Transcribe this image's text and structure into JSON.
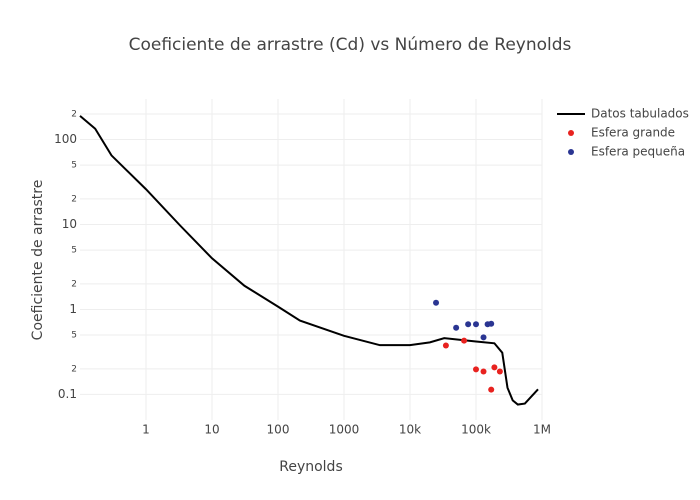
{
  "chart_data": {
    "type": "line",
    "title": "Coeficiente de arrastre (Cd) vs Número de Reynolds",
    "xlabel": "Reynolds",
    "ylabel": "Coeficiente de arrastre",
    "xscale": "log",
    "yscale": "log",
    "grid": true,
    "legend": "top-right",
    "xlim": [
      0.1,
      1000000
    ],
    "ylim": [
      0.05,
      300
    ],
    "xticks": [
      1,
      10,
      100,
      1000,
      {
        "value": 10000,
        "label": "10k"
      },
      {
        "value": 100000,
        "label": "100k"
      },
      {
        "value": 1000000,
        "label": "1M"
      }
    ],
    "yticks": [
      0.1,
      {
        "value": 0.2,
        "label": "2"
      },
      {
        "value": 0.5,
        "label": "5"
      },
      1,
      {
        "value": 2,
        "label": "2"
      },
      {
        "value": 5,
        "label": "5"
      },
      10,
      {
        "value": 20,
        "label": "2"
      },
      {
        "value": 50,
        "label": "5"
      },
      100,
      {
        "value": 200,
        "label": "2"
      }
    ],
    "series": [
      {
        "name": "Datos tabulados",
        "color": "#000000",
        "mode": "lines",
        "x": [
          0.1,
          0.17,
          0.3,
          1,
          3.3,
          10,
          31,
          100,
          215,
          1000,
          3500,
          10000,
          20000,
          33000,
          100000,
          190000,
          250000,
          300000,
          360000,
          430000,
          550000,
          870000
        ],
        "values": [
          190,
          134,
          65,
          26,
          9.7,
          4,
          1.9,
          1.08,
          0.74,
          0.49,
          0.38,
          0.38,
          0.41,
          0.46,
          0.42,
          0.4,
          0.31,
          0.12,
          0.085,
          0.076,
          0.078,
          0.115
        ]
      },
      {
        "name": "Esfera grande",
        "color": "#e8221f",
        "mode": "markers",
        "x": [
          35000,
          66000,
          100000,
          130000,
          170000,
          190000,
          230000
        ],
        "values": [
          0.377,
          0.43,
          0.197,
          0.186,
          0.114,
          0.208,
          0.186
        ]
      },
      {
        "name": "Esfera pequeña",
        "color": "#2a3592",
        "mode": "markers",
        "x": [
          24800,
          50000,
          76000,
          100000,
          130000,
          150000,
          170000
        ],
        "values": [
          1.2,
          0.61,
          0.67,
          0.67,
          0.47,
          0.67,
          0.68
        ]
      }
    ]
  }
}
